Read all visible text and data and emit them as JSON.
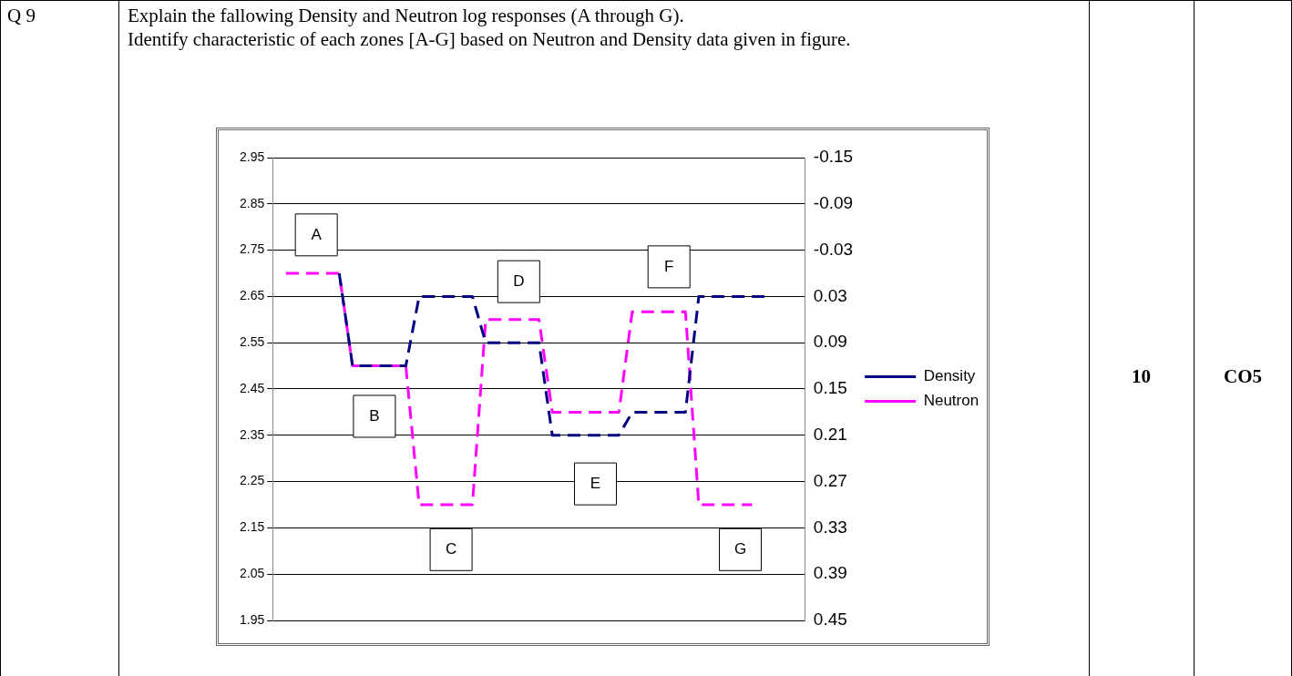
{
  "chart_data": {
    "type": "line",
    "title": "Explain the fallowing Density and Neutron log responses (A through G).",
    "subtitle": "Identify characteristic of each zones [A-G] based on Neutron and Density data given in figure.",
    "annotations": [
      "Q 9",
      "10",
      "CO5",
      "A",
      "B",
      "C",
      "D",
      "E",
      "F",
      "G"
    ],
    "categories": [
      null,
      null,
      null,
      null,
      null,
      null,
      null,
      null,
      null,
      null,
      null,
      null,
      null,
      null,
      null,
      null,
      null,
      null,
      null,
      null,
      null,
      null,
      null,
      null,
      null,
      null,
      null,
      null,
      null,
      null,
      null,
      null,
      null,
      null,
      null,
      null,
      null,
      null,
      null,
      null,
      null
    ],
    "series": [
      {
        "name": "Density",
        "color": "#000080",
        "values": [
          null,
          null,
          null,
          null,
          null,
          2.7,
          2.5,
          2.5,
          2.5,
          2.5,
          2.5,
          2.65,
          2.65,
          2.65,
          2.65,
          2.65,
          2.55,
          2.55,
          2.55,
          2.55,
          2.55,
          2.35,
          2.35,
          2.35,
          2.35,
          2.35,
          2.35,
          2.4,
          2.4,
          2.4,
          2.4,
          2.4,
          2.65,
          2.65,
          2.65,
          2.65,
          2.65,
          2.65,
          null,
          null,
          null
        ]
      },
      {
        "name": "Neutron",
        "color": "#ff00ff",
        "axis": "y2",
        "values": [
          null,
          0.0,
          0.0,
          0.0,
          0.0,
          0.0,
          0.12,
          0.12,
          0.12,
          0.12,
          0.12,
          0.3,
          0.3,
          0.3,
          0.3,
          0.3,
          0.06,
          0.06,
          0.06,
          0.06,
          0.06,
          0.18,
          0.18,
          0.18,
          0.18,
          0.18,
          0.18,
          0.05,
          0.05,
          0.05,
          0.05,
          0.05,
          0.3,
          0.3,
          0.3,
          0.3,
          0.3,
          null,
          null,
          null,
          null
        ]
      }
    ],
    "ylim": [
      1.95,
      2.95
    ],
    "yticks": [
      {
        "value": 1.95,
        "label": "1.95"
      },
      {
        "value": 2.05,
        "label": "2.05"
      },
      {
        "value": 2.15,
        "label": "2.15"
      },
      {
        "value": 2.25,
        "label": "2.25"
      },
      {
        "value": 2.35,
        "label": "2.35"
      },
      {
        "value": 2.45,
        "label": "2.45"
      },
      {
        "value": 2.55,
        "label": "2.55"
      },
      {
        "value": 2.65,
        "label": "2.65"
      },
      {
        "value": 2.75,
        "label": "2.75"
      },
      {
        "value": 2.85,
        "label": "2.85"
      },
      {
        "value": 2.95,
        "label": "2.95"
      }
    ],
    "y2lim": [
      0.45,
      -0.15
    ],
    "y2ticks": [
      {
        "value": 0.45,
        "label": "0.45"
      },
      {
        "value": 0.39,
        "label": "0.39"
      },
      {
        "value": 0.33,
        "label": "0.33"
      },
      {
        "value": 0.27,
        "label": "0.27"
      },
      {
        "value": 0.21,
        "label": "0.21"
      },
      {
        "value": 0.15,
        "label": "0.15"
      },
      {
        "value": 0.09,
        "label": "0.09"
      },
      {
        "value": 0.03,
        "label": "0.03"
      },
      {
        "value": -0.03,
        "label": "-0.03"
      },
      {
        "value": -0.09,
        "label": "-0.09"
      },
      {
        "value": -0.15,
        "label": "-0.15"
      }
    ],
    "tick_labels": "y",
    "grid": "y",
    "legend": "right",
    "line_style": "dashed",
    "marker": "none"
  }
}
